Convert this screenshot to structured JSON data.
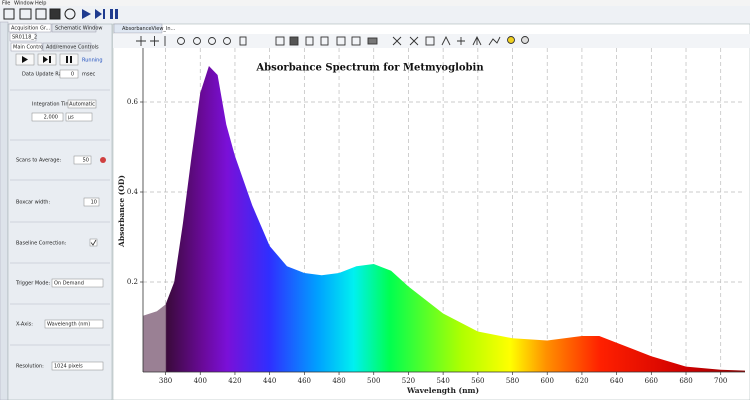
{
  "menu": [
    "File",
    "Window",
    "Help"
  ],
  "left_panel": {
    "tabs": [
      "Acquisition Gr...",
      "Schematic Window"
    ],
    "device": "SR0118_2",
    "subtabs": [
      "Main Controls",
      "Add/remove Controls"
    ],
    "status": "Running",
    "data_update_rate": {
      "label": "Data Update Rate:",
      "value": "0",
      "unit": "msec"
    },
    "integration_time": {
      "label": "Integration Time:",
      "mode": "Automatic",
      "value": "2,000",
      "unit": "µs"
    },
    "scans_to_average": {
      "label": "Scans to Average:",
      "value": "50"
    },
    "boxcar_width": {
      "label": "Boxcar width:",
      "value": "10"
    },
    "baseline_correction": {
      "label": "Baseline Correction:"
    },
    "trigger_mode": {
      "label": "Trigger Mode:",
      "value": "On Demand"
    },
    "x_axis": {
      "label": "X-Axis:",
      "value": "Wavelength (nm)"
    },
    "resolution": {
      "label": "Resolution:",
      "value": "1024 pixels"
    }
  },
  "chart_tab": "AbsorbanceView_In...",
  "chart_data": {
    "type": "area",
    "title": "Absorbance Spectrum for Metmyoglobin",
    "x_label": "Wavelength (nm)",
    "y_label": "Absorbance (OD)",
    "x": [
      367,
      375,
      380,
      385,
      390,
      395,
      400,
      405,
      410,
      415,
      420,
      430,
      440,
      450,
      460,
      470,
      480,
      490,
      500,
      510,
      520,
      540,
      560,
      580,
      600,
      620,
      630,
      640,
      660,
      680,
      700,
      714
    ],
    "values": [
      0.125,
      0.135,
      0.15,
      0.2,
      0.33,
      0.48,
      0.62,
      0.68,
      0.66,
      0.55,
      0.48,
      0.37,
      0.28,
      0.235,
      0.22,
      0.215,
      0.22,
      0.235,
      0.24,
      0.225,
      0.19,
      0.13,
      0.09,
      0.075,
      0.07,
      0.08,
      0.08,
      0.065,
      0.035,
      0.012,
      0.005,
      0.003
    ],
    "xlim": [
      367,
      714
    ],
    "ylim": [
      0,
      0.72
    ],
    "xticks": [
      380,
      400,
      420,
      440,
      460,
      480,
      500,
      520,
      540,
      560,
      580,
      600,
      620,
      640,
      660,
      680,
      700
    ],
    "yticks": [
      0.2,
      0.4,
      0.6
    ],
    "grid": true
  }
}
